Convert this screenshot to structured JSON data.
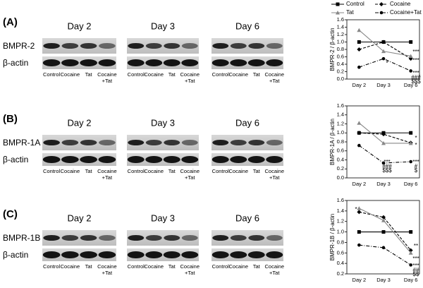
{
  "panels": [
    {
      "label": "(A)",
      "protein": "BMPR-2",
      "loading": "β-actin",
      "days": [
        "Day 2",
        "Day 3",
        "Day 6"
      ],
      "lanes": [
        "Control",
        "Cocaine",
        "Tat",
        "Cocaine",
        "+Tat"
      ]
    },
    {
      "label": "(B)",
      "protein": "BMPR-1A",
      "loading": "β-actin",
      "days": [
        "Day 2",
        "Day 3",
        "Day 6"
      ],
      "lanes": [
        "Control",
        "Cocaine",
        "Tat",
        "Cocaine",
        "+Tat"
      ]
    },
    {
      "label": "(C)",
      "protein": "BMPR-1B",
      "loading": "β-actin",
      "days": [
        "Day 2",
        "Day 3",
        "Day 6"
      ],
      "lanes": [
        "Control",
        "Cocaine",
        "Tat",
        "Cocaine",
        "+Tat"
      ]
    }
  ],
  "chart_data": [
    {
      "type": "line",
      "y_label": "BMPR-2 / β-actin",
      "categories": [
        "Day 2",
        "Day 3",
        "Day 6"
      ],
      "legend": "top",
      "ylim": [
        0,
        1.6
      ],
      "yticks": [
        {
          "value": 0,
          "label": "0.0"
        },
        0.2,
        0.4,
        0.6,
        0.8,
        {
          "value": 1,
          "label": "1.0"
        },
        1.2,
        1.4,
        1.6
      ],
      "series": [
        {
          "name": "Control",
          "color": "#000000",
          "dash": "none",
          "marker": "square",
          "values": [
            1,
            1,
            1
          ]
        },
        {
          "name": "Cocaine",
          "color": "#000000",
          "dash": "4,2",
          "marker": "diamond",
          "values": [
            0.8,
            1.0,
            0.55
          ]
        },
        {
          "name": "Tat",
          "color": "#888888",
          "dash": "none",
          "marker": "triangle",
          "values": [
            1.32,
            0.75,
            0.62
          ]
        },
        {
          "name": "Cocaine+Tat",
          "color": "#000000",
          "dash": "5,2,1,2",
          "marker": "circle",
          "values": [
            0.32,
            0.55,
            0.22
          ]
        }
      ],
      "annotations": [
        "***",
        "***",
        "***",
        "###",
        "$$$",
        "*"
      ]
    },
    {
      "type": "line",
      "y_label": "BMPR-1A / β-actin",
      "categories": [
        "Day 2",
        "Day 3",
        "Day 6"
      ],
      "ylim": [
        0,
        1.6
      ],
      "yticks": [
        {
          "value": 0,
          "label": "0.0"
        },
        0.2,
        0.4,
        0.6,
        0.8,
        {
          "value": 1,
          "label": "1.0"
        },
        1.2,
        1.4,
        1.6
      ],
      "series": [
        {
          "name": "Control",
          "color": "#000000",
          "dash": "none",
          "marker": "square",
          "values": [
            1,
            1,
            1
          ]
        },
        {
          "name": "Cocaine",
          "color": "#000000",
          "dash": "4,2",
          "marker": "diamond",
          "values": [
            1.0,
            0.97,
            0.78
          ]
        },
        {
          "name": "Tat",
          "color": "#888888",
          "dash": "none",
          "marker": "triangle",
          "values": [
            1.22,
            0.77,
            0.77
          ]
        },
        {
          "name": "Cocaine+Tat",
          "color": "#000000",
          "dash": "5,2,1,2",
          "marker": "circle",
          "values": [
            0.72,
            0.33,
            0.36
          ]
        }
      ],
      "annotations": [
        "*",
        "*",
        "***",
        "###",
        "$$$",
        "***",
        "#",
        "$"
      ]
    },
    {
      "type": "line",
      "y_label": "BMPR-1B / β-actin",
      "categories": [
        "Day 2",
        "Day 3",
        "Day 6"
      ],
      "ylim": [
        0.2,
        1.6
      ],
      "yticks": [
        0.2,
        0.4,
        0.6,
        0.8,
        {
          "value": 1,
          "label": "1.0"
        },
        1.2,
        1.4,
        1.6
      ],
      "series": [
        {
          "name": "Control",
          "color": "#000000",
          "dash": "none",
          "marker": "square",
          "values": [
            1,
            1,
            1
          ]
        },
        {
          "name": "Cocaine",
          "color": "#000000",
          "dash": "4,2",
          "marker": "diamond",
          "values": [
            1.38,
            1.28,
            0.65
          ]
        },
        {
          "name": "Tat",
          "color": "#888888",
          "dash": "none",
          "marker": "triangle",
          "values": [
            1.45,
            1.22,
            0.6
          ]
        },
        {
          "name": "Cocaine+Tat",
          "color": "#000000",
          "dash": "5,2,1,2",
          "marker": "circle",
          "values": [
            0.75,
            0.7,
            0.37
          ]
        }
      ],
      "annotations": [
        "*",
        "**",
        "***",
        "***",
        "##",
        "$$"
      ]
    }
  ]
}
